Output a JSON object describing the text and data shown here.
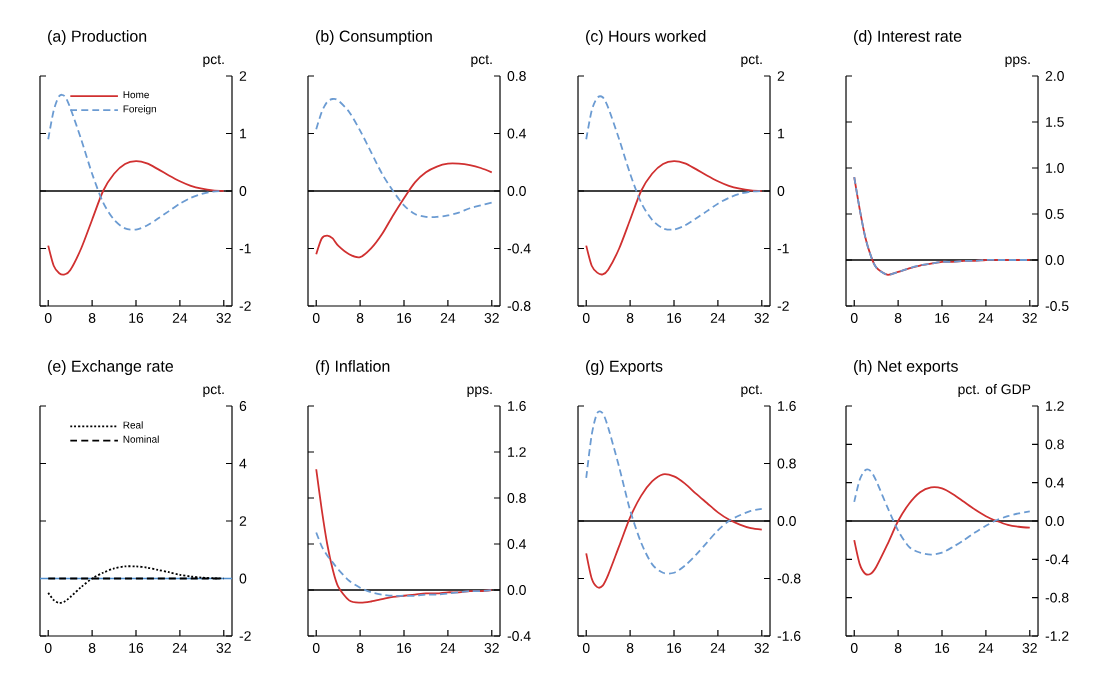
{
  "chart_data": [
    {
      "type": "line",
      "title": "(a) Production",
      "ylabel": "pct.",
      "x": [
        0,
        1,
        2,
        3,
        4,
        6,
        8,
        10,
        12,
        14,
        16,
        18,
        20,
        22,
        24,
        26,
        28,
        30,
        32
      ],
      "xlim": [
        -1.5,
        33.5
      ],
      "xticks": [
        0,
        8,
        16,
        24,
        32
      ],
      "ylim": [
        -2,
        2
      ],
      "yticks": [
        -2,
        -1,
        0,
        1,
        2
      ],
      "legend": "top left",
      "marker": "none",
      "ref_lines": [
        {
          "axis": "y",
          "value": 0,
          "color": "#000000"
        }
      ],
      "series": [
        {
          "name": "Home",
          "color": "#d03030",
          "line_style": "solid",
          "values": [
            -0.95,
            -1.3,
            -1.43,
            -1.45,
            -1.38,
            -1.0,
            -0.5,
            0.0,
            0.3,
            0.47,
            0.52,
            0.48,
            0.38,
            0.27,
            0.17,
            0.09,
            0.04,
            0.01,
            0
          ]
        },
        {
          "name": "Foreign",
          "color": "#6b9bd2",
          "line_style": "dashed",
          "values": [
            0.9,
            1.4,
            1.65,
            1.65,
            1.45,
            0.9,
            0.3,
            -0.2,
            -0.5,
            -0.65,
            -0.67,
            -0.6,
            -0.48,
            -0.35,
            -0.22,
            -0.12,
            -0.05,
            -0.01,
            0
          ]
        }
      ]
    },
    {
      "type": "line",
      "title": "(b) Consumption",
      "ylabel": "pct.",
      "x": [
        0,
        1,
        2,
        3,
        4,
        6,
        8,
        10,
        12,
        14,
        16,
        18,
        20,
        22,
        24,
        26,
        28,
        30,
        32
      ],
      "xlim": [
        -1.5,
        33.5
      ],
      "xticks": [
        0,
        8,
        16,
        24,
        32
      ],
      "ylim": [
        -0.8,
        0.8
      ],
      "yticks": [
        -0.8,
        -0.4,
        {
          "value": 0,
          "label": "0.0"
        },
        0.4,
        0.8
      ],
      "marker": "none",
      "ref_lines": [
        {
          "axis": "y",
          "value": 0,
          "color": "#000000"
        }
      ],
      "series": [
        {
          "color": "#d03030",
          "line_style": "solid",
          "values": [
            -0.44,
            -0.33,
            -0.31,
            -0.33,
            -0.38,
            -0.44,
            -0.46,
            -0.4,
            -0.3,
            -0.17,
            -0.05,
            0.06,
            0.13,
            0.17,
            0.19,
            0.19,
            0.18,
            0.16,
            0.13
          ]
        },
        {
          "color": "#6b9bd2",
          "line_style": "dashed",
          "values": [
            0.43,
            0.55,
            0.62,
            0.64,
            0.63,
            0.55,
            0.42,
            0.27,
            0.12,
            0.0,
            -0.1,
            -0.16,
            -0.18,
            -0.18,
            -0.17,
            -0.15,
            -0.12,
            -0.1,
            -0.08
          ]
        }
      ]
    },
    {
      "type": "line",
      "title": "(c) Hours worked",
      "ylabel": "pct.",
      "x": [
        0,
        1,
        2,
        3,
        4,
        6,
        8,
        10,
        12,
        14,
        16,
        18,
        20,
        22,
        24,
        26,
        28,
        30,
        32
      ],
      "xlim": [
        -1.5,
        33.5
      ],
      "xticks": [
        0,
        8,
        16,
        24,
        32
      ],
      "ylim": [
        -2,
        2
      ],
      "yticks": [
        -2,
        -1,
        0,
        1,
        2
      ],
      "marker": "none",
      "ref_lines": [
        {
          "axis": "y",
          "value": 0,
          "color": "#000000"
        }
      ],
      "series": [
        {
          "color": "#d03030",
          "line_style": "solid",
          "values": [
            -0.95,
            -1.3,
            -1.42,
            -1.45,
            -1.37,
            -1.0,
            -0.5,
            0.0,
            0.3,
            0.47,
            0.52,
            0.48,
            0.38,
            0.27,
            0.17,
            0.09,
            0.04,
            0.01,
            0
          ]
        },
        {
          "color": "#6b9bd2",
          "line_style": "dashed",
          "values": [
            0.9,
            1.4,
            1.62,
            1.63,
            1.45,
            0.9,
            0.3,
            -0.2,
            -0.5,
            -0.65,
            -0.67,
            -0.6,
            -0.48,
            -0.35,
            -0.22,
            -0.12,
            -0.05,
            -0.01,
            0
          ]
        }
      ]
    },
    {
      "type": "line",
      "title": "(d) Interest rate",
      "ylabel": "pps.",
      "x": [
        0,
        1,
        2,
        3,
        4,
        6,
        8,
        10,
        12,
        14,
        16,
        18,
        20,
        22,
        24,
        26,
        28,
        30,
        32
      ],
      "xlim": [
        -1.5,
        33.5
      ],
      "xticks": [
        0,
        8,
        16,
        24,
        32
      ],
      "ylim": [
        -0.5,
        2.0
      ],
      "yticks": [
        -0.5,
        {
          "value": 0,
          "label": "0.0"
        },
        0.5,
        {
          "value": 1,
          "label": "1.0"
        },
        1.5,
        {
          "value": 2,
          "label": "2.0"
        }
      ],
      "marker": "none",
      "ref_lines": [
        {
          "axis": "y",
          "value": 0,
          "color": "#000000"
        }
      ],
      "series": [
        {
          "color": "#d03030",
          "line_style": "solid",
          "values": [
            0.9,
            0.55,
            0.25,
            0.05,
            -0.08,
            -0.16,
            -0.13,
            -0.09,
            -0.06,
            -0.04,
            -0.02,
            -0.02,
            -0.01,
            -0.01,
            0,
            0,
            0,
            0,
            0
          ]
        },
        {
          "color": "#6b9bd2",
          "line_style": "dashed",
          "values": [
            0.9,
            0.55,
            0.25,
            0.05,
            -0.08,
            -0.16,
            -0.13,
            -0.09,
            -0.06,
            -0.04,
            -0.02,
            -0.02,
            -0.01,
            -0.01,
            0,
            0,
            0,
            0,
            0
          ]
        }
      ]
    },
    {
      "type": "line",
      "title": "(e) Exchange rate",
      "ylabel": "pct.",
      "x": [
        0,
        1,
        2,
        3,
        4,
        6,
        8,
        10,
        12,
        14,
        16,
        18,
        20,
        22,
        24,
        26,
        28,
        30,
        32
      ],
      "xlim": [
        -1.5,
        33.5
      ],
      "xticks": [
        0,
        8,
        16,
        24,
        32
      ],
      "ylim": [
        -2,
        6
      ],
      "yticks": [
        -2,
        0,
        2,
        4,
        6
      ],
      "legend": "top left",
      "marker": "none",
      "ref_lines": [
        {
          "axis": "y",
          "value": 0,
          "color": "#4f8fd0"
        }
      ],
      "series": [
        {
          "name": "Real",
          "color": "#000000",
          "line_style": "dotted",
          "values": [
            -0.5,
            -0.75,
            -0.85,
            -0.8,
            -0.65,
            -0.3,
            0.0,
            0.2,
            0.35,
            0.42,
            0.42,
            0.38,
            0.3,
            0.22,
            0.13,
            0.07,
            0.03,
            0.01,
            0
          ]
        },
        {
          "name": "Nominal",
          "color": "#000000",
          "line_style": "dashed",
          "values": [
            0,
            0,
            0,
            0,
            0,
            0,
            0,
            0,
            0,
            0,
            0,
            0,
            0,
            0,
            0,
            0,
            0,
            0,
            0
          ]
        }
      ]
    },
    {
      "type": "line",
      "title": "(f) Inflation",
      "ylabel": "pps.",
      "x": [
        0,
        1,
        2,
        3,
        4,
        6,
        8,
        10,
        12,
        14,
        16,
        18,
        20,
        22,
        24,
        26,
        28,
        30,
        32
      ],
      "xlim": [
        -1.5,
        33.5
      ],
      "xticks": [
        0,
        8,
        16,
        24,
        32
      ],
      "ylim": [
        -0.4,
        1.6
      ],
      "yticks": [
        -0.4,
        {
          "value": 0,
          "label": "0.0"
        },
        0.4,
        0.8,
        1.2,
        1.6
      ],
      "marker": "none",
      "ref_lines": [
        {
          "axis": "y",
          "value": 0,
          "color": "#000000"
        }
      ],
      "series": [
        {
          "color": "#d03030",
          "line_style": "solid",
          "values": [
            1.05,
            0.7,
            0.4,
            0.18,
            0.03,
            -0.09,
            -0.11,
            -0.1,
            -0.08,
            -0.06,
            -0.05,
            -0.04,
            -0.03,
            -0.03,
            -0.02,
            -0.02,
            -0.01,
            -0.01,
            0
          ]
        },
        {
          "color": "#6b9bd2",
          "line_style": "dashed",
          "values": [
            0.5,
            0.38,
            0.3,
            0.24,
            0.18,
            0.08,
            0.02,
            -0.02,
            -0.04,
            -0.05,
            -0.05,
            -0.05,
            -0.04,
            -0.04,
            -0.03,
            -0.02,
            -0.01,
            -0.01,
            0
          ]
        }
      ]
    },
    {
      "type": "line",
      "title": "(g) Exports",
      "ylabel": "pct.",
      "x": [
        0,
        1,
        2,
        3,
        4,
        6,
        8,
        10,
        12,
        14,
        16,
        18,
        20,
        22,
        24,
        26,
        28,
        30,
        32
      ],
      "xlim": [
        -1.5,
        33.5
      ],
      "xticks": [
        0,
        8,
        16,
        24,
        32
      ],
      "ylim": [
        -1.6,
        1.6
      ],
      "yticks": [
        -1.6,
        -0.8,
        {
          "value": 0,
          "label": "0.0"
        },
        0.8,
        1.6
      ],
      "marker": "none",
      "ref_lines": [
        {
          "axis": "y",
          "value": 0,
          "color": "#000000"
        }
      ],
      "series": [
        {
          "color": "#d03030",
          "line_style": "solid",
          "values": [
            -0.45,
            -0.8,
            -0.92,
            -0.9,
            -0.75,
            -0.35,
            0.05,
            0.35,
            0.55,
            0.65,
            0.62,
            0.52,
            0.38,
            0.25,
            0.12,
            0.02,
            -0.05,
            -0.1,
            -0.12
          ]
        },
        {
          "color": "#6b9bd2",
          "line_style": "dashed",
          "values": [
            0.6,
            1.2,
            1.5,
            1.5,
            1.3,
            0.75,
            0.15,
            -0.3,
            -0.6,
            -0.72,
            -0.72,
            -0.62,
            -0.47,
            -0.3,
            -0.13,
            0.0,
            0.08,
            0.14,
            0.17
          ]
        }
      ]
    },
    {
      "type": "line",
      "title": "(h) Net exports",
      "ylabel": "pct. of GDP",
      "x": [
        0,
        1,
        2,
        3,
        4,
        6,
        8,
        10,
        12,
        14,
        16,
        18,
        20,
        22,
        24,
        26,
        28,
        30,
        32
      ],
      "xlim": [
        -1.5,
        33.5
      ],
      "xticks": [
        0,
        8,
        16,
        24,
        32
      ],
      "ylim": [
        -1.2,
        1.2
      ],
      "yticks": [
        -1.2,
        -0.8,
        -0.4,
        {
          "value": 0,
          "label": "0.0"
        },
        0.4,
        0.8,
        1.2
      ],
      "marker": "none",
      "ref_lines": [
        {
          "axis": "y",
          "value": 0,
          "color": "#000000"
        }
      ],
      "series": [
        {
          "color": "#d03030",
          "line_style": "solid",
          "values": [
            -0.2,
            -0.45,
            -0.55,
            -0.55,
            -0.48,
            -0.25,
            0.0,
            0.18,
            0.3,
            0.35,
            0.34,
            0.28,
            0.2,
            0.12,
            0.05,
            0.0,
            -0.04,
            -0.06,
            -0.07
          ]
        },
        {
          "color": "#6b9bd2",
          "line_style": "dashed",
          "values": [
            0.2,
            0.43,
            0.53,
            0.52,
            0.42,
            0.15,
            -0.1,
            -0.27,
            -0.33,
            -0.35,
            -0.33,
            -0.27,
            -0.2,
            -0.12,
            -0.05,
            0.01,
            0.05,
            0.08,
            0.1
          ]
        }
      ]
    }
  ]
}
